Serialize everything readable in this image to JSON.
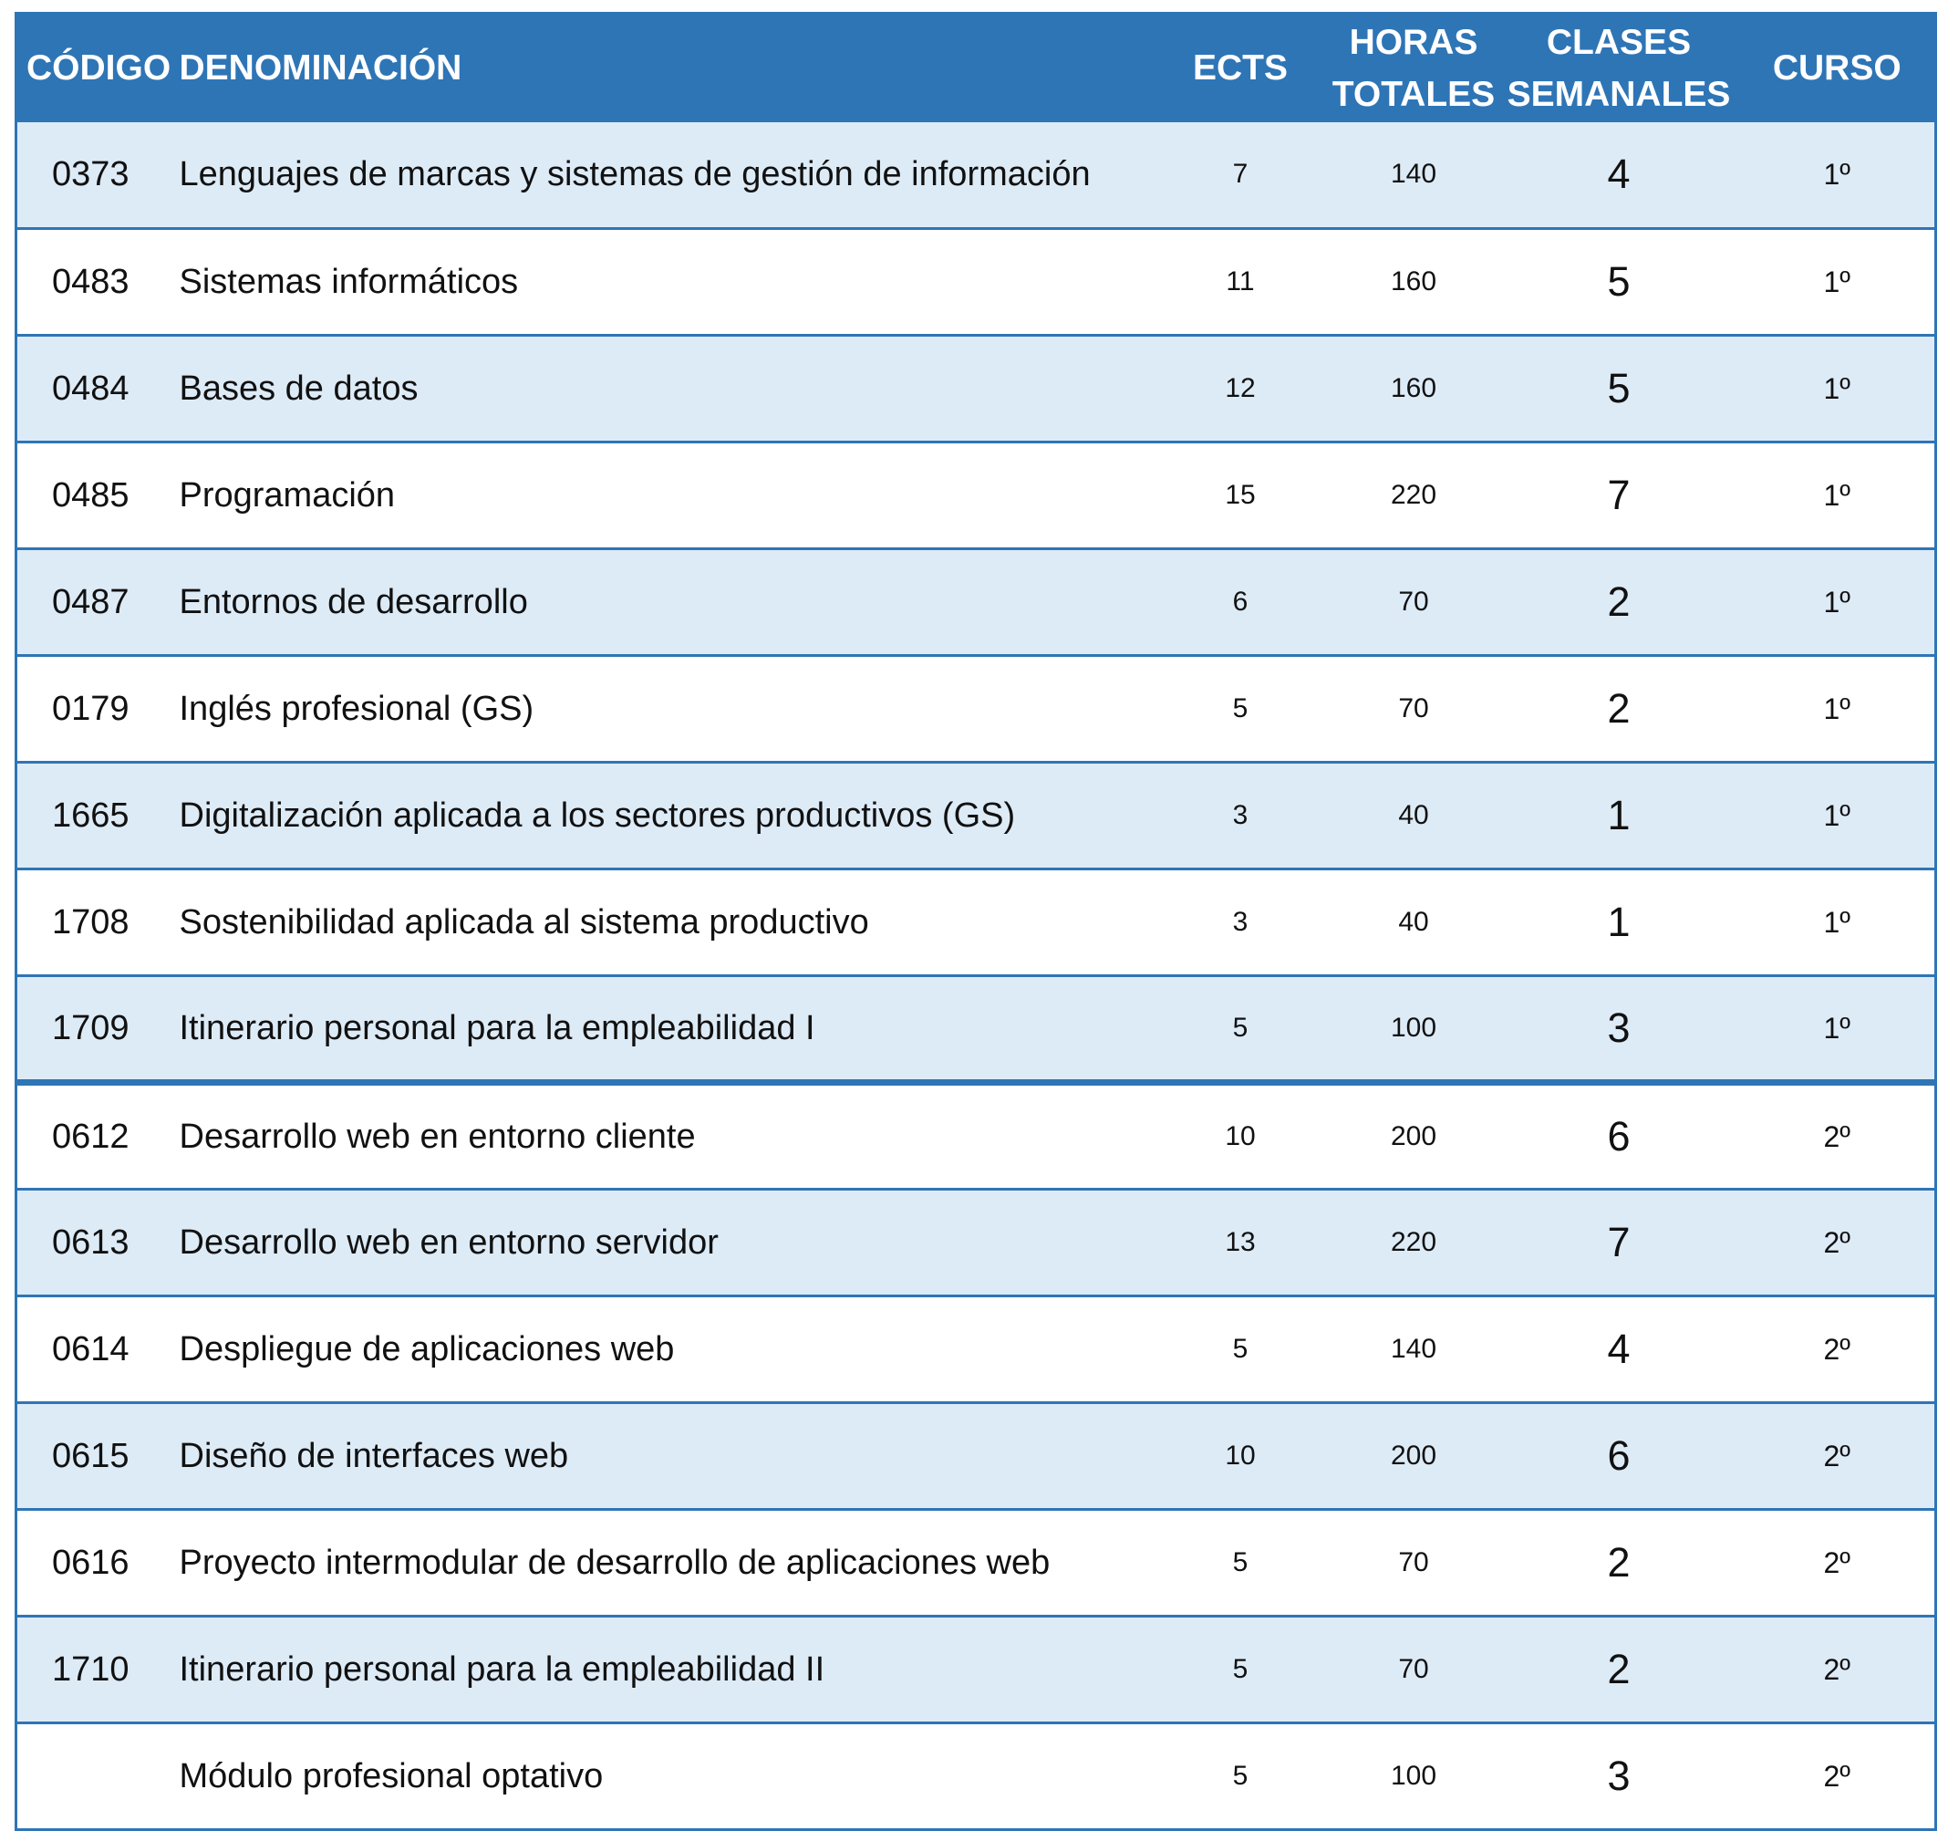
{
  "headers": {
    "codigo": "CÓDIGO",
    "denominacion": "DENOMINACIÓN",
    "ects": "ECTS",
    "horas": [
      "HORAS",
      "TOTALES"
    ],
    "clases": [
      "CLASES",
      "SEMANALES"
    ],
    "curso": "CURSO"
  },
  "colors": {
    "header": "#2E75B6",
    "row_alt": "#DDEBF7",
    "border": "#2E75B6"
  },
  "rows": [
    {
      "codigo": "0373",
      "denominacion": "Lenguajes de marcas y sistemas de gestión de información",
      "ects": "7",
      "horas": "140",
      "clases": "4",
      "curso": "1º"
    },
    {
      "codigo": "0483",
      "denominacion": "Sistemas informáticos",
      "ects": "11",
      "horas": "160",
      "clases": "5",
      "curso": "1º"
    },
    {
      "codigo": "0484",
      "denominacion": "Bases de datos",
      "ects": "12",
      "horas": "160",
      "clases": "5",
      "curso": "1º"
    },
    {
      "codigo": "0485",
      "denominacion": "Programación",
      "ects": "15",
      "horas": "220",
      "clases": "7",
      "curso": "1º"
    },
    {
      "codigo": "0487",
      "denominacion": "Entornos de desarrollo",
      "ects": "6",
      "horas": "70",
      "clases": "2",
      "curso": "1º"
    },
    {
      "codigo": "0179",
      "denominacion": "Inglés profesional (GS)",
      "ects": "5",
      "horas": "70",
      "clases": "2",
      "curso": "1º"
    },
    {
      "codigo": "1665",
      "denominacion": "Digitalización aplicada a los sectores productivos (GS)",
      "ects": "3",
      "horas": "40",
      "clases": "1",
      "curso": "1º"
    },
    {
      "codigo": "1708",
      "denominacion": "Sostenibilidad aplicada al sistema productivo",
      "ects": "3",
      "horas": "40",
      "clases": "1",
      "curso": "1º"
    },
    {
      "codigo": "1709",
      "denominacion": "Itinerario personal para la empleabilidad I",
      "ects": "5",
      "horas": "100",
      "clases": "3",
      "curso": "1º"
    },
    {
      "codigo": "0612",
      "denominacion": "Desarrollo web en entorno cliente",
      "ects": "10",
      "horas": "200",
      "clases": "6",
      "curso": "2º"
    },
    {
      "codigo": "0613",
      "denominacion": "Desarrollo web en entorno servidor",
      "ects": "13",
      "horas": "220",
      "clases": "7",
      "curso": "2º"
    },
    {
      "codigo": "0614",
      "denominacion": "Despliegue de aplicaciones web",
      "ects": "5",
      "horas": "140",
      "clases": "4",
      "curso": "2º"
    },
    {
      "codigo": "0615",
      "denominacion": "Diseño de interfaces web",
      "ects": "10",
      "horas": "200",
      "clases": "6",
      "curso": "2º"
    },
    {
      "codigo": "0616",
      "denominacion": "Proyecto intermodular de desarrollo de aplicaciones web",
      "ects": "5",
      "horas": "70",
      "clases": "2",
      "curso": "2º"
    },
    {
      "codigo": "1710",
      "denominacion": "Itinerario personal para la empleabilidad II",
      "ects": "5",
      "horas": "70",
      "clases": "2",
      "curso": "2º"
    },
    {
      "codigo": "",
      "denominacion": "Módulo profesional optativo",
      "ects": "5",
      "horas": "100",
      "clases": "3",
      "curso": "2º"
    }
  ]
}
